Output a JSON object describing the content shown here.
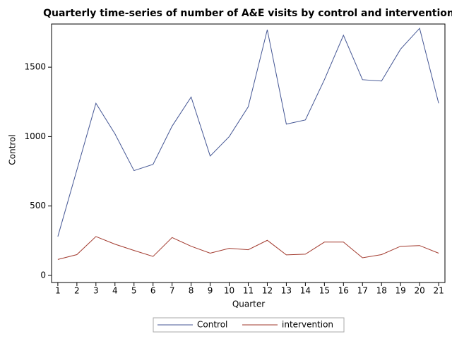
{
  "chart_data": {
    "type": "line",
    "title": "Quarterly time-series of number of A&E visits by control and intervention",
    "x_label": "Quarter",
    "y_label": "Control",
    "x": [
      1,
      2,
      3,
      4,
      5,
      6,
      7,
      8,
      9,
      10,
      11,
      12,
      13,
      14,
      15,
      16,
      17,
      18,
      19,
      20,
      21
    ],
    "series": [
      {
        "name": "Control",
        "color": "#445694",
        "values": [
          280,
          760,
          1240,
          1020,
          755,
          800,
          1075,
          1285,
          860,
          1000,
          1215,
          1770,
          1090,
          1120,
          1410,
          1730,
          1410,
          1400,
          1630,
          1780,
          1240
        ]
      },
      {
        "name": "intervention",
        "color": "#a23a2e",
        "values": [
          115,
          150,
          280,
          225,
          180,
          137,
          273,
          210,
          160,
          195,
          185,
          253,
          148,
          153,
          240,
          240,
          127,
          150,
          210,
          215,
          160
        ]
      }
    ],
    "xlim": [
      0.67,
      21.33
    ],
    "xticks": [
      1,
      2,
      3,
      4,
      5,
      6,
      7,
      8,
      9,
      10,
      11,
      12,
      13,
      14,
      15,
      16,
      17,
      18,
      19,
      20,
      21
    ],
    "ylim": [
      -51,
      1811
    ],
    "yticks": [
      0,
      500,
      1000,
      1500
    ],
    "grid": false,
    "legend": "bottom"
  }
}
